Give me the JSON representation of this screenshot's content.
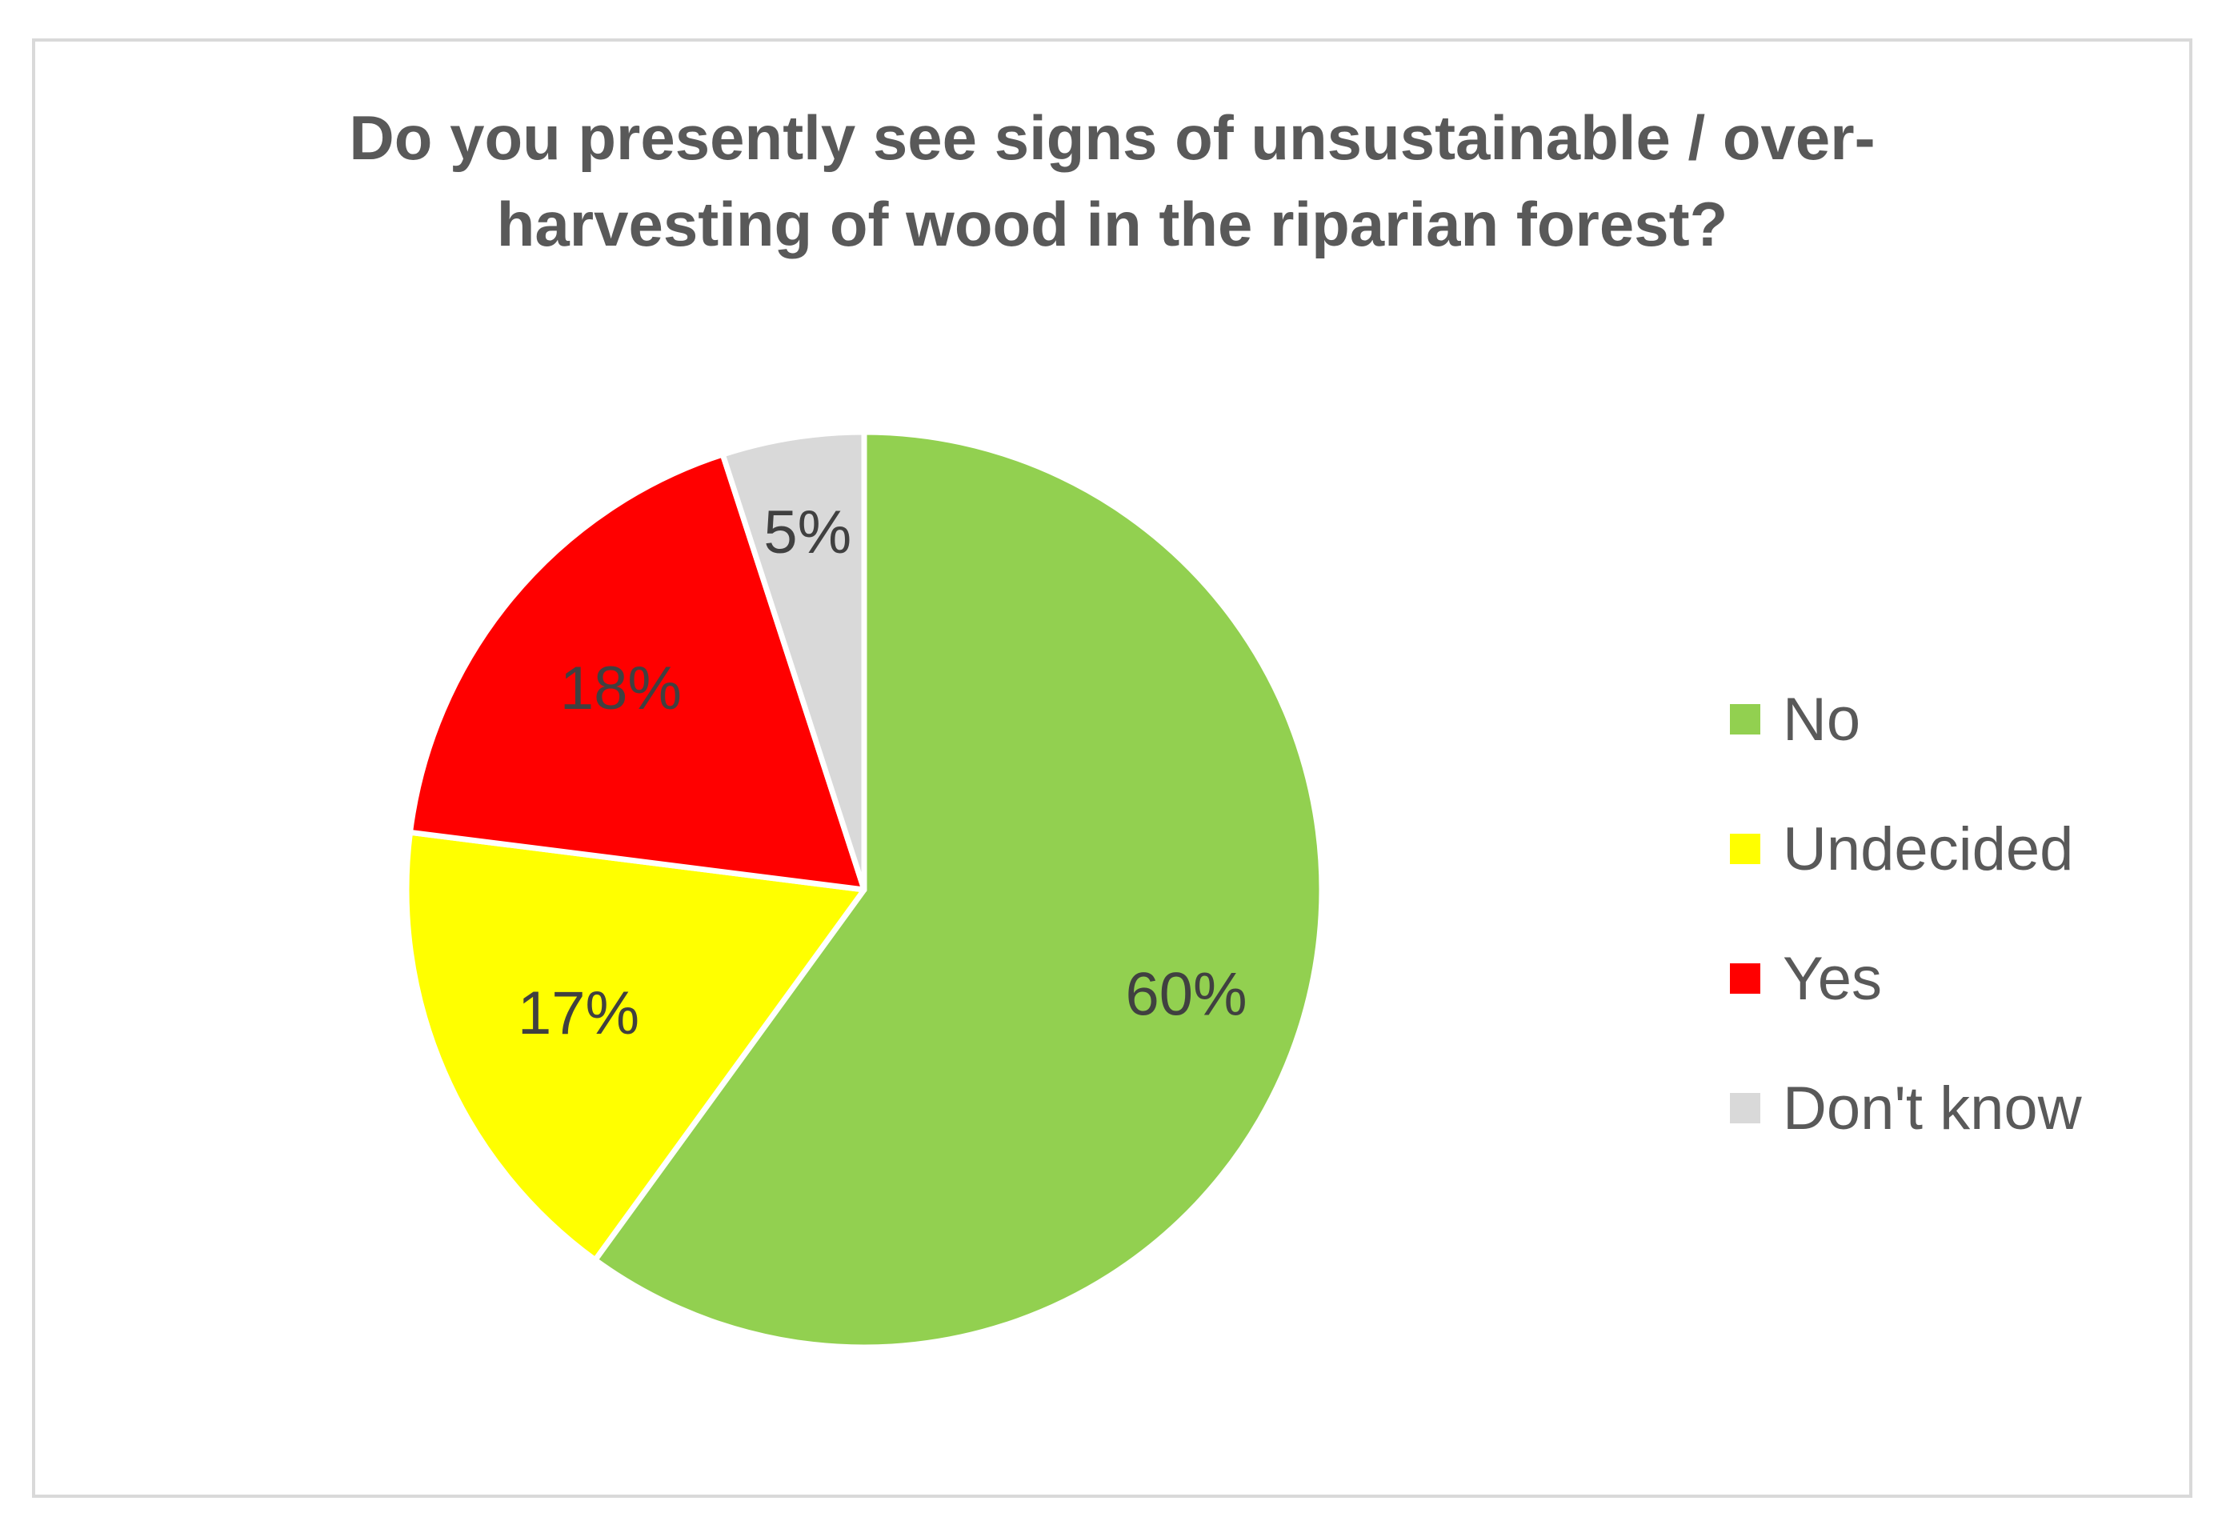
{
  "chart_data": {
    "type": "pie",
    "title_lines": [
      "Do you presently see signs of unsustainable / over-",
      "harvesting of wood in the riparian forest?"
    ],
    "start_angle_deg": 0,
    "direction": "clockwise",
    "slices": [
      {
        "label": "No",
        "value": 60,
        "data_label": "60%",
        "color": "#92D050"
      },
      {
        "label": "Undecided",
        "value": 17,
        "data_label": "17%",
        "color": "#FFFF00"
      },
      {
        "label": "Yes",
        "value": 18,
        "data_label": "18%",
        "color": "#FF0000"
      },
      {
        "label": "Don't know",
        "value": 5,
        "data_label": "5%",
        "color": "#D9D9D9"
      }
    ],
    "legend": {
      "position": "right",
      "entries": [
        "No",
        "Undecided",
        "Yes",
        "Don't know"
      ]
    },
    "slice_border_color": "#FFFFFF",
    "label_color": "#404040",
    "text_color": "#595959"
  }
}
